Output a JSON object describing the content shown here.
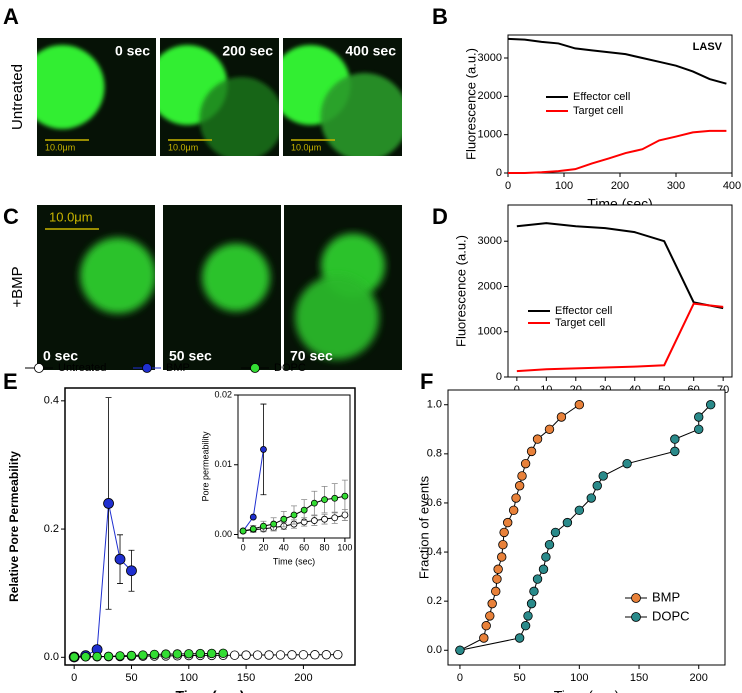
{
  "panel_letters": [
    "A",
    "B",
    "C",
    "D",
    "E",
    "F"
  ],
  "image_panels": [
    {
      "condition": "Untreated",
      "scale_bar": "10.0μm",
      "frames": [
        "0 sec",
        "200 sec",
        "400 sec"
      ]
    },
    {
      "condition": "+BMP",
      "scale_bar": "10.0μm",
      "frames": [
        "0 sec",
        "50 sec",
        "70 sec"
      ]
    }
  ],
  "chart_data": [
    {
      "type": "line",
      "annotation": "LASV",
      "xlabel": "Time (sec)",
      "ylabel": "Fluorescence (a.u.)",
      "x": [
        0,
        30,
        60,
        90,
        120,
        150,
        180,
        210,
        240,
        270,
        300,
        330,
        360,
        390
      ],
      "series": [
        {
          "name": "Effector cell",
          "color": "#000000",
          "values": [
            3500,
            3480,
            3420,
            3380,
            3250,
            3200,
            3150,
            3100,
            3000,
            2900,
            2800,
            2650,
            2450,
            2330
          ]
        },
        {
          "name": "Target cell",
          "color": "#ff0000",
          "values": [
            0,
            0,
            20,
            50,
            100,
            250,
            380,
            520,
            620,
            850,
            950,
            1060,
            1100,
            1100
          ]
        }
      ],
      "xlim": [
        0,
        400
      ],
      "xticks": [
        0,
        100,
        200,
        300,
        400
      ],
      "ylim": [
        0,
        3600
      ],
      "yticks": [
        0,
        1000,
        2000,
        3000
      ],
      "legend": "center"
    },
    {
      "type": "line",
      "xlabel": "Time (sec)",
      "ylabel": "Fluorescence (a.u.)",
      "x": [
        0,
        10,
        20,
        30,
        40,
        50,
        60,
        70
      ],
      "series": [
        {
          "name": "Effector cell",
          "color": "#000000",
          "values": [
            3330,
            3400,
            3330,
            3290,
            3200,
            3000,
            1650,
            1520
          ]
        },
        {
          "name": "Target cell",
          "color": "#ff0000",
          "values": [
            130,
            170,
            190,
            210,
            230,
            260,
            1620,
            1550
          ]
        }
      ],
      "xlim": [
        -3,
        73
      ],
      "xticks": [
        0,
        10,
        20,
        30,
        40,
        50,
        60,
        70
      ],
      "ylim": [
        0,
        3800
      ],
      "yticks": [
        0,
        1000,
        2000,
        3000
      ],
      "legend": "center left"
    },
    {
      "type": "line",
      "markers": true,
      "xlabel": "Time (sec)",
      "ylabel": "Relative Pore Permeability",
      "series": [
        {
          "name": "Untreated",
          "color": "#ffffff",
          "line_color": "#000000",
          "x": [
            0,
            10,
            20,
            30,
            40,
            50,
            60,
            70,
            80,
            90,
            100,
            110,
            120,
            130,
            140,
            150,
            160,
            170,
            180,
            190,
            200,
            210,
            220,
            230
          ],
          "values": [
            0.0005,
            0.0007,
            0.0008,
            0.001,
            0.0012,
            0.0015,
            0.0018,
            0.002,
            0.0022,
            0.0024,
            0.0028,
            0.003,
            0.003,
            0.0032,
            0.0033,
            0.0034,
            0.0035,
            0.0036,
            0.0037,
            0.0038,
            0.0039,
            0.004,
            0.004,
            0.0041
          ]
        },
        {
          "name": "BMP",
          "color": "#1f2fd0",
          "line_color": "#1f2fd0",
          "x": [
            0,
            10,
            20,
            30,
            40,
            50
          ],
          "values": [
            0.0005,
            0.0025,
            0.012,
            0.24,
            0.153,
            0.135
          ],
          "errors": [
            0,
            0,
            0.006,
            0.165,
            0.038,
            0.032
          ]
        },
        {
          "name": "DOPC",
          "color": "#33dd33",
          "line_color": "#000000",
          "x": [
            0,
            10,
            20,
            30,
            40,
            50,
            60,
            70,
            80,
            90,
            100,
            110,
            120,
            130
          ],
          "values": [
            0.0005,
            0.0008,
            0.0012,
            0.0015,
            0.0022,
            0.0028,
            0.0035,
            0.0045,
            0.005,
            0.0052,
            0.0055,
            0.0058,
            0.006,
            0.0062
          ]
        }
      ],
      "xlim": [
        -8,
        245
      ],
      "xticks": [
        0,
        50,
        100,
        150,
        200
      ],
      "ylim": [
        -0.012,
        0.42
      ],
      "yticks": [
        {
          "value": 0,
          "label": "0.0"
        },
        {
          "value": 0.2,
          "label": "0.2"
        },
        {
          "value": 0.4,
          "label": "0.4"
        }
      ],
      "legend": "top"
    },
    {
      "type": "line",
      "markers": true,
      "inset": true,
      "xlabel": "Time (sec)",
      "ylabel": "Pore permeability",
      "series": [
        {
          "name": "Untreated",
          "color": "#ffffff",
          "line_color": "#000000",
          "x": [
            0,
            10,
            20,
            30,
            40,
            50,
            60,
            70,
            80,
            90,
            100
          ],
          "values": [
            0.0005,
            0.0007,
            0.0008,
            0.001,
            0.0012,
            0.0015,
            0.0018,
            0.002,
            0.0022,
            0.0024,
            0.0028
          ],
          "errors": [
            0.0003,
            0.0003,
            0.0004,
            0.0005,
            0.0005,
            0.0006,
            0.0006,
            0.0007,
            0.0007,
            0.0008,
            0.0008
          ]
        },
        {
          "name": "BMP",
          "color": "#1f2fd0",
          "line_color": "#1f2fd0",
          "x": [
            0,
            10,
            20
          ],
          "values": [
            0.0005,
            0.0025,
            0.0122
          ],
          "errors": [
            0,
            0,
            0.0065
          ]
        },
        {
          "name": "DOPC",
          "color": "#33dd33",
          "line_color": "#000000",
          "x": [
            0,
            10,
            20,
            30,
            40,
            50,
            60,
            70,
            80,
            90,
            100
          ],
          "values": [
            0.0005,
            0.0008,
            0.0012,
            0.0015,
            0.0022,
            0.0028,
            0.0035,
            0.0045,
            0.005,
            0.0052,
            0.0055
          ],
          "errors": [
            0.0003,
            0.0005,
            0.0007,
            0.0009,
            0.0011,
            0.0013,
            0.0015,
            0.0017,
            0.0019,
            0.0021,
            0.0023
          ]
        }
      ],
      "xlim": [
        -5,
        105
      ],
      "xticks": [
        0,
        20,
        40,
        60,
        80,
        100
      ],
      "ylim": [
        -0.0005,
        0.02
      ],
      "yticks": [
        {
          "value": 0,
          "label": "0.00"
        },
        {
          "value": 0.01,
          "label": "0.01"
        },
        {
          "value": 0.02,
          "label": "0.02"
        }
      ]
    },
    {
      "type": "line",
      "markers": true,
      "xlabel": "Time (sec)",
      "ylabel": "Fraction of events",
      "series": [
        {
          "name": "BMP",
          "color": "#e8813a",
          "line_color": "#000000",
          "x": [
            0,
            20,
            22,
            25,
            27,
            30,
            31,
            32,
            35,
            36,
            37,
            40,
            45,
            47,
            50,
            52,
            55,
            60,
            65,
            75,
            85,
            100
          ],
          "values": [
            0,
            0.05,
            0.1,
            0.14,
            0.19,
            0.24,
            0.29,
            0.33,
            0.38,
            0.43,
            0.48,
            0.52,
            0.57,
            0.62,
            0.67,
            0.71,
            0.76,
            0.81,
            0.86,
            0.9,
            0.95,
            1.0
          ]
        },
        {
          "name": "DOPC",
          "color": "#2a8a8a",
          "line_color": "#000000",
          "x": [
            0,
            50,
            55,
            57,
            60,
            62,
            65,
            70,
            72,
            75,
            80,
            90,
            100,
            110,
            115,
            120,
            140,
            180,
            180,
            200,
            200,
            210
          ],
          "values": [
            0,
            0.05,
            0.1,
            0.14,
            0.19,
            0.24,
            0.29,
            0.33,
            0.38,
            0.43,
            0.48,
            0.52,
            0.57,
            0.62,
            0.67,
            0.71,
            0.76,
            0.81,
            0.86,
            0.9,
            0.95,
            1.0
          ]
        }
      ],
      "xlim": [
        -10,
        222
      ],
      "xticks": [
        0,
        50,
        100,
        150,
        200
      ],
      "ylim": [
        -0.06,
        1.06
      ],
      "yticks": [
        {
          "value": 0,
          "label": "0.0"
        },
        {
          "value": 0.2,
          "label": "0.2"
        },
        {
          "value": 0.4,
          "label": "0.4"
        },
        {
          "value": 0.6,
          "label": "0.6"
        },
        {
          "value": 0.8,
          "label": "0.8"
        },
        {
          "value": 1.0,
          "label": "1.0"
        }
      ],
      "legend": "lower right"
    }
  ]
}
